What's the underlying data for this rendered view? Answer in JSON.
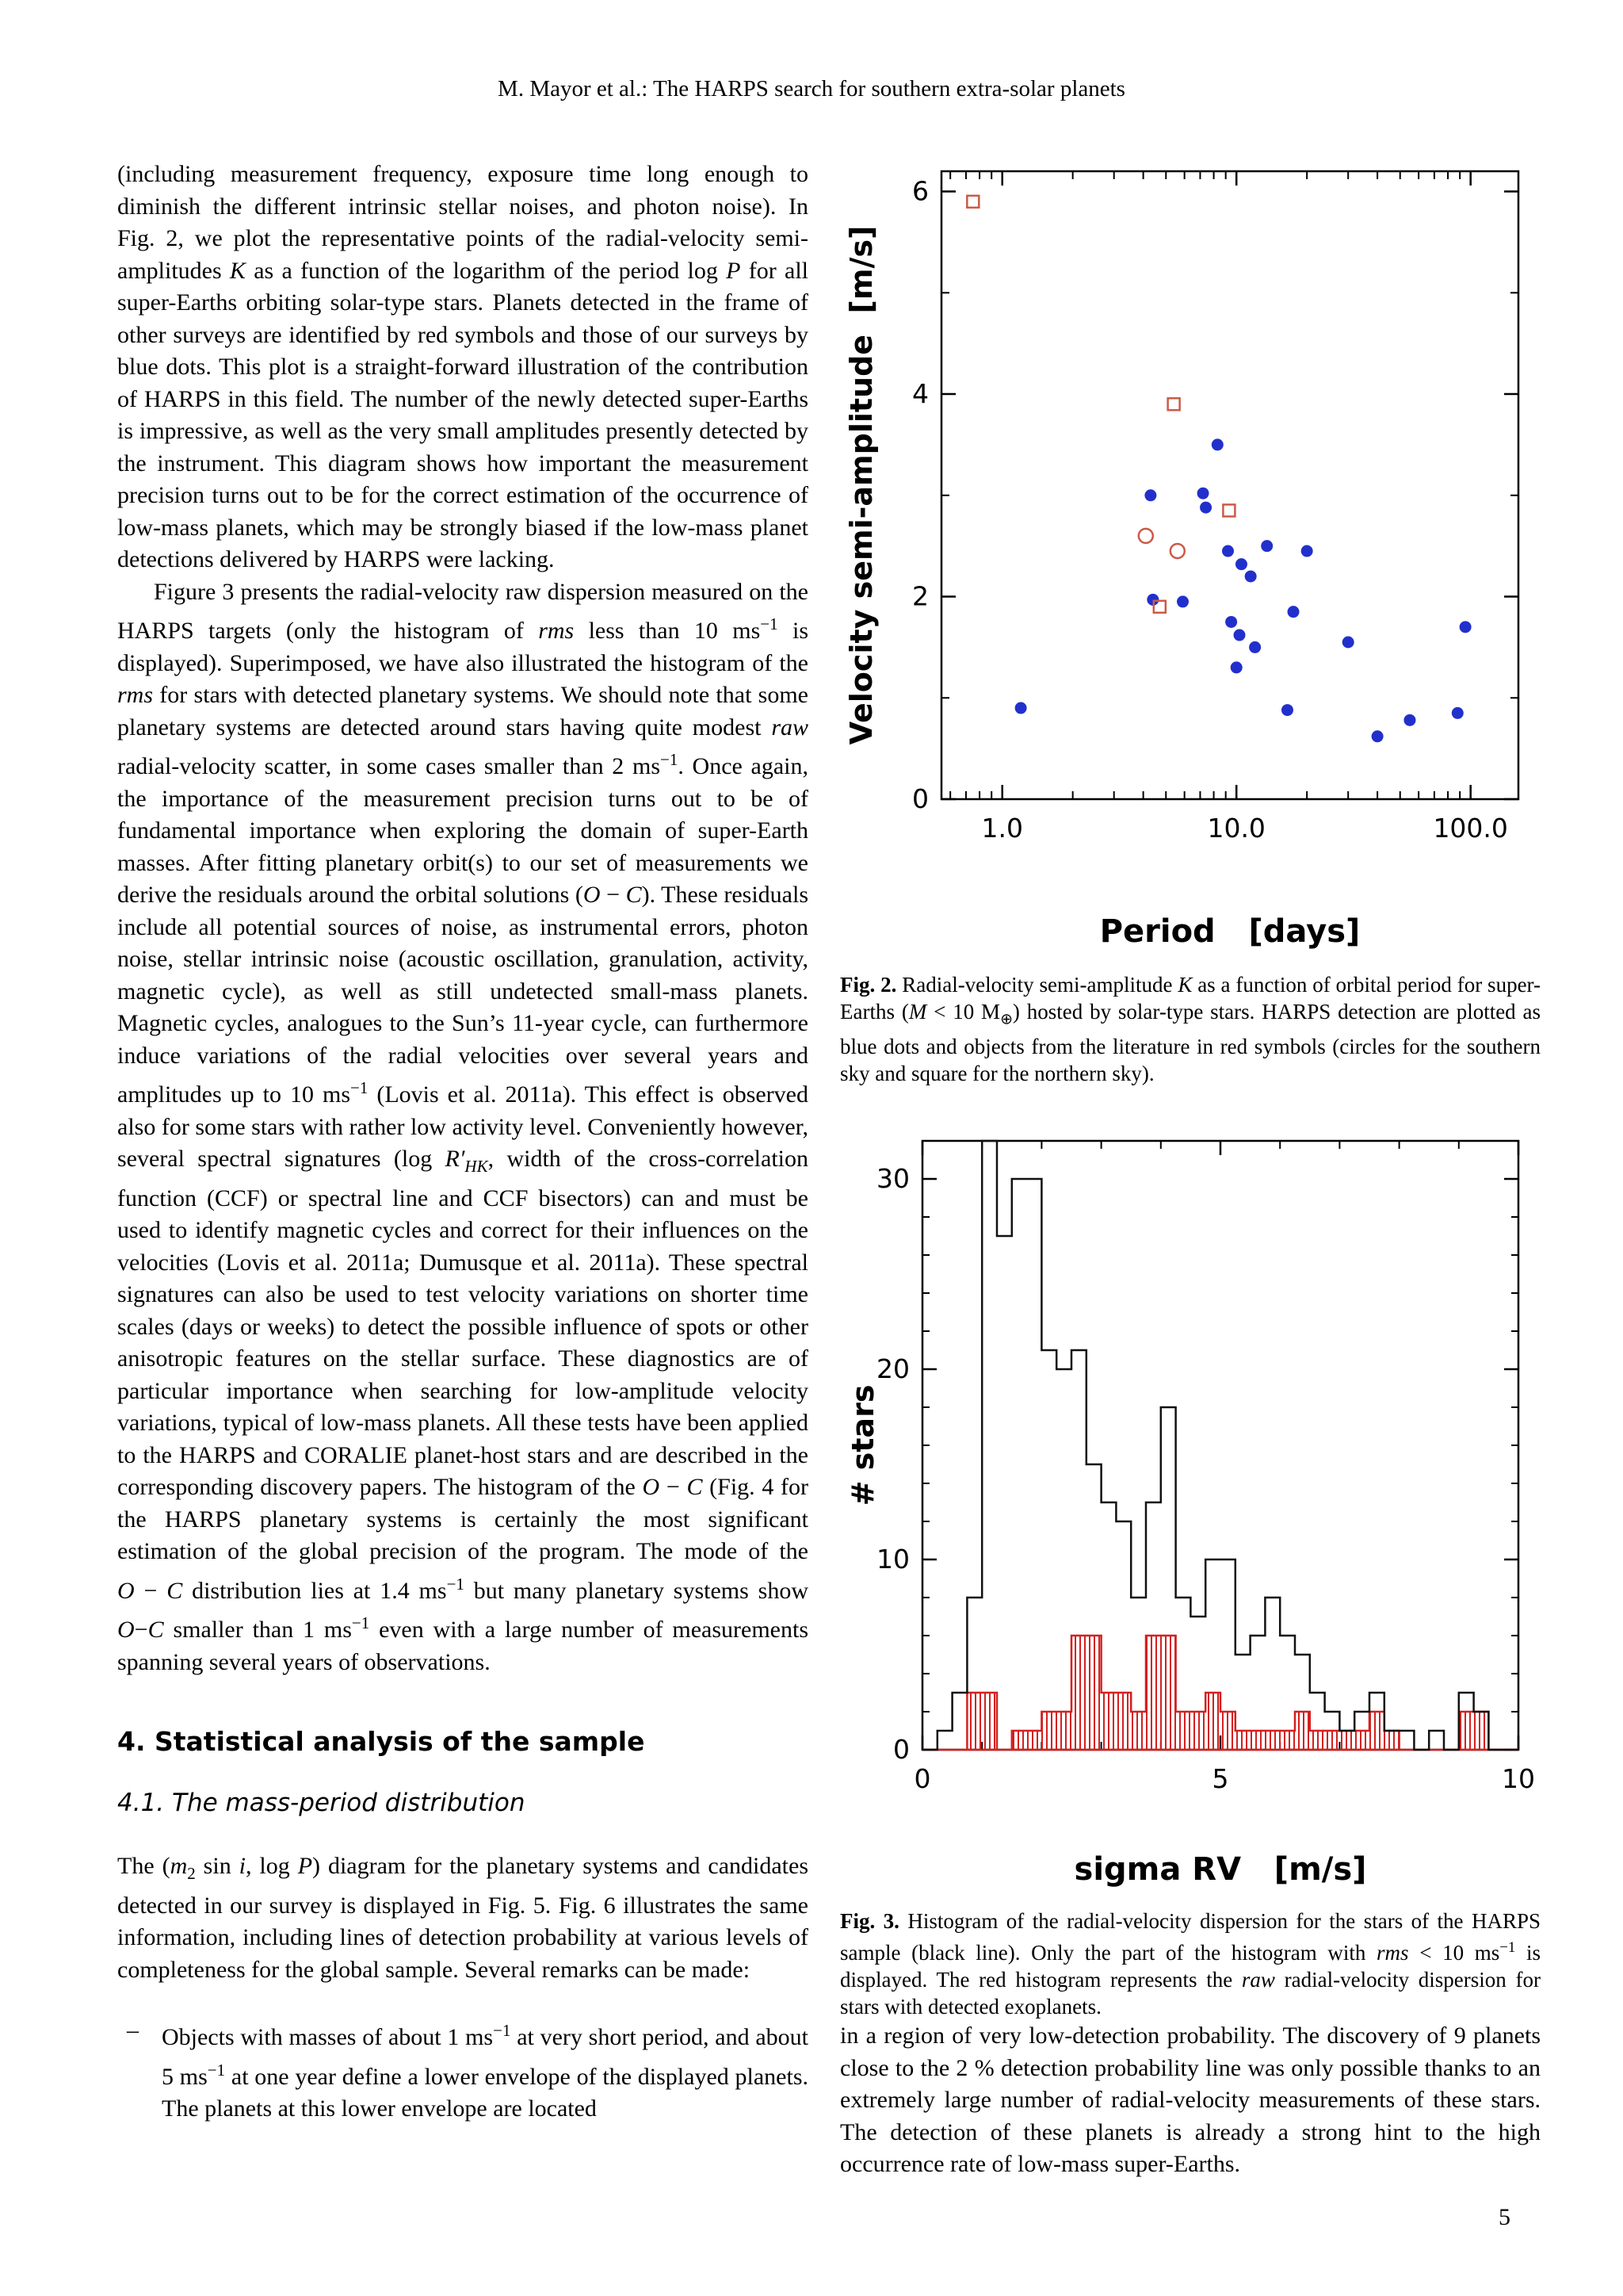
{
  "page": {
    "header": "M. Mayor et al.: The HARPS search for southern extra-solar planets",
    "page_number": "5"
  },
  "left_column": {
    "para1_html": "(including measurement frequency, exposure time long enough to diminish the different intrinsic stellar noises, and photon noise). In Fig.&nbsp;2, we plot the representative points of the radial-velocity semi-amplitudes <i>K</i> as a function of the logarithm of the period log&nbsp;<i>P</i> for all super-Earths orbiting solar-type stars. Planets detected in the frame of other surveys are identified by red symbols and those of our surveys by blue dots. This plot is a straight-forward illustration of the contribution of HARPS in this field. The number of the newly detected super-Earths is impressive, as well as the very small amplitudes presently detected by the instrument. This diagram shows how important the measurement precision turns out to be for the correct estimation of the occurrence of low-mass planets, which may be strongly biased if the low-mass planet detections delivered by HARPS were lacking.",
    "para2_html": "Figure&nbsp;3 presents the radial-velocity raw dispersion measured on the HARPS targets (only the histogram of <i>rms</i> less than 10&nbsp;ms<sup>−1</sup> is displayed). Superimposed, we have also illustrated the histogram of the <i>rms</i> for stars with detected planetary systems. We should note that some planetary systems are detected around stars having quite modest <i>raw</i> radial-velocity scatter, in some cases smaller than 2&nbsp;ms<sup>−1</sup>. Once again, the importance of the measurement precision turns out to be of fundamental importance when exploring the domain of super-Earth masses. After fitting planetary orbit(s) to our set of measurements we derive the residuals around the orbital solutions (<i>O</i>&nbsp;−&nbsp;<i>C</i>). These residuals include all potential sources of noise, as instrumental errors, photon noise, stellar intrinsic noise (acoustic oscillation, granulation, activity, magnetic cycle), as well as still undetected small-mass planets. Magnetic cycles, analogues to the Sun’s 11-year cycle, can furthermore induce variations of the radial velocities over several years and amplitudes up to 10&nbsp;ms<sup>−1</sup> (Lovis et al. 2011a). This effect is observed also for some stars with rather low activity level. Conveniently however, several spectral signatures (log&nbsp;<i>R′<sub>HK</sub></i>, width of the cross-correlation function (CCF) or spectral line and CCF bisectors) can and must be used to identify magnetic cycles and correct for their influences on the velocities (Lovis et al. 2011a; Dumusque et al. 2011a). These spectral signatures can also be used to test velocity variations on shorter time scales (days or weeks) to detect the possible influence of spots or other anisotropic features on the stellar surface. These diagnostics are of particular importance when searching for low-amplitude velocity variations, typical of low-mass planets. All these tests have been applied to the HARPS and CORALIE planet-host stars and are described in the corresponding discovery papers. The histogram of the <i>O</i>&nbsp;−&nbsp;<i>C</i> (Fig.&nbsp;4 for the HARPS planetary systems is certainly the most significant estimation of the global precision of the program. The mode of the <i>O</i>&nbsp;−&nbsp;<i>C</i> distribution lies at 1.4&nbsp;ms<sup>−1</sup> but many planetary systems show <i>O</i>−<i>C</i> smaller than 1&nbsp;ms<sup>−1</sup> even with a large number of measurements spanning several years of observations.",
    "section_heading": "4. Statistical analysis of the sample",
    "subsection_heading": "4.1. The mass-period distribution",
    "para3_html": "The (<i>m</i><sub>2</sub>&nbsp;sin&nbsp;<i>i</i>, log&nbsp;<i>P</i>) diagram for the planetary systems and candidates detected in our survey is displayed in Fig.&nbsp;5. Fig.&nbsp;6 illustrates the same information, including lines of detection probability at various levels of completeness for the global sample. Several remarks can be made:",
    "bullet_dash": "–",
    "bullet_html": "Objects with masses of about 1&nbsp;ms<sup>−1</sup> at very short period, and about 5&nbsp;ms<sup>−1</sup> at one year define a lower envelope of the displayed planets. The planets at this lower envelope are located"
  },
  "right_column": {
    "fig2_caption_html": "<b>Fig. 2.</b> Radial-velocity semi-amplitude <i>K</i> as a function of orbital period for super-Earths (<i>M</i> &lt; 10&nbsp;M<sub>⊕</sub>) hosted by solar-type stars. HARPS detection are plotted as blue dots and objects from the literature in red symbols (circles for the southern sky and square for the northern sky).",
    "fig3_caption_html": "<b>Fig. 3.</b> Histogram of the radial-velocity dispersion for the stars of the HARPS sample (black line). Only the part of the histogram with <i>rms</i> &lt; 10&nbsp;ms<sup>−1</sup> is displayed. The red histogram represents the <i>raw</i> radial-velocity dispersion for stars with detected exoplanets.",
    "closing_para_html": "in a region of very low-detection probability. The discovery of 9 planets close to the 2&nbsp;% detection probability line was only possible thanks to an extremely large number of radial-velocity measurements of these stars. The detection of these planets is already a strong hint to the high occurrence rate of low-mass super-Earths."
  },
  "chart_data": [
    {
      "id": "fig2",
      "type": "scatter",
      "xlabel": "Period   [days]",
      "ylabel": "Velocity semi-amplitude  [m/s]",
      "x_scale": "log",
      "xlim": [
        0.55,
        160
      ],
      "ylim": [
        0,
        6.2
      ],
      "x_ticks": [
        {
          "v": 1,
          "label": "1.0"
        },
        {
          "v": 10,
          "label": "10.0"
        },
        {
          "v": 100,
          "label": "100.0"
        }
      ],
      "y_ticks": [
        {
          "v": 0,
          "label": "0"
        },
        {
          "v": 2,
          "label": "2"
        },
        {
          "v": 4,
          "label": "4"
        },
        {
          "v": 6,
          "label": "6"
        }
      ],
      "series": [
        {
          "name": "HARPS detections",
          "marker": "filled-dot",
          "color": "#2130cc",
          "points": [
            [
              1.2,
              0.9
            ],
            [
              4.3,
              3.0
            ],
            [
              7.2,
              3.02
            ],
            [
              7.4,
              2.88
            ],
            [
              8.3,
              3.5
            ],
            [
              9.2,
              2.45
            ],
            [
              10.5,
              2.32
            ],
            [
              11.5,
              2.2
            ],
            [
              13.5,
              2.5
            ],
            [
              20,
              2.45
            ],
            [
              4.4,
              1.97
            ],
            [
              5.9,
              1.95
            ],
            [
              9.5,
              1.75
            ],
            [
              10.3,
              1.62
            ],
            [
              12.0,
              1.5
            ],
            [
              17.5,
              1.85
            ],
            [
              10.0,
              1.3
            ],
            [
              16.5,
              0.88
            ],
            [
              30,
              1.55
            ],
            [
              40,
              0.62
            ],
            [
              55,
              0.78
            ],
            [
              88,
              0.85
            ],
            [
              95,
              1.7
            ]
          ]
        },
        {
          "name": "literature southern sky",
          "marker": "open-circle",
          "color": "#cc5a47",
          "points": [
            [
              4.1,
              2.6
            ],
            [
              5.6,
              2.45
            ]
          ]
        },
        {
          "name": "literature northern sky",
          "marker": "open-square",
          "color": "#cc5a47",
          "points": [
            [
              0.75,
              5.9
            ],
            [
              5.4,
              3.9
            ],
            [
              9.3,
              2.85
            ],
            [
              4.7,
              1.9
            ]
          ]
        }
      ]
    },
    {
      "id": "fig3",
      "type": "histogram",
      "xlabel": "sigma RV   [m/s]",
      "ylabel": "# stars",
      "xlim": [
        0,
        10
      ],
      "ylim": [
        0,
        32
      ],
      "x_ticks": [
        {
          "v": 0,
          "label": "0"
        },
        {
          "v": 5,
          "label": "5"
        },
        {
          "v": 10,
          "label": "10"
        }
      ],
      "y_ticks": [
        {
          "v": 0,
          "label": "0"
        },
        {
          "v": 10,
          "label": "10"
        },
        {
          "v": 20,
          "label": "20"
        },
        {
          "v": 30,
          "label": "30"
        }
      ],
      "bin_start": 0,
      "bin_width": 0.25,
      "series": [
        {
          "name": "HARPS sample",
          "style": "outline",
          "color": "#111111",
          "values": [
            0,
            1,
            3,
            8,
            32,
            27,
            30,
            30,
            21,
            20,
            21,
            15,
            13,
            12,
            8,
            13,
            18,
            8,
            7,
            10,
            10,
            5,
            6,
            8,
            6,
            5,
            3,
            2,
            1,
            2,
            3,
            1,
            1,
            0,
            1,
            0,
            3,
            2,
            0,
            0
          ]
        },
        {
          "name": "stars with detected exoplanets",
          "style": "hatched",
          "color": "#d42020",
          "values": [
            0,
            0,
            0,
            3,
            3,
            0,
            1,
            1,
            2,
            2,
            6,
            6,
            3,
            3,
            2,
            6,
            6,
            2,
            2,
            3,
            2,
            1,
            1,
            1,
            1,
            2,
            1,
            1,
            1,
            1,
            2,
            1,
            0,
            0,
            0,
            0,
            2,
            2,
            0,
            0
          ]
        }
      ]
    }
  ]
}
